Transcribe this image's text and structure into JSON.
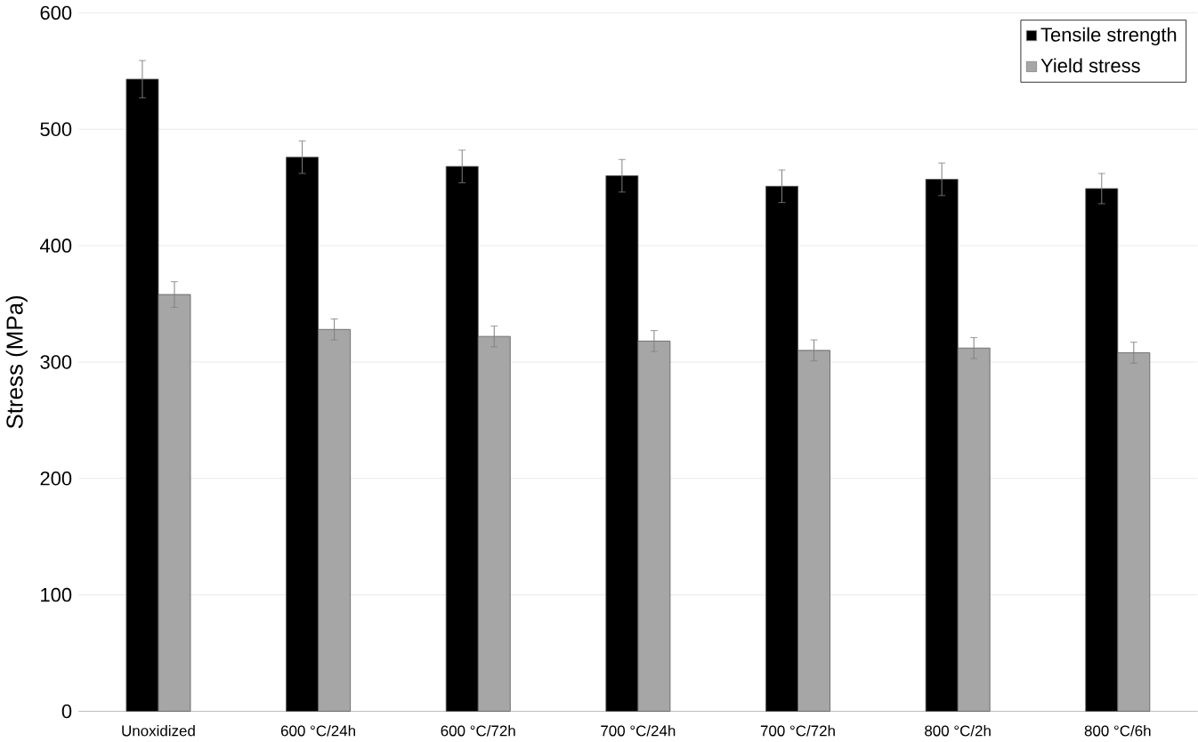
{
  "chart_data": {
    "type": "bar",
    "ylabel": "Stress (MPa)",
    "categories": [
      "Unoxidized",
      "600 °C/24h",
      "600 °C/72h",
      "700 °C/24h",
      "700 °C/72h",
      "800 °C/2h",
      "800 °C/6h"
    ],
    "series": [
      {
        "name": "Tensile strength",
        "color": "#000000",
        "values": [
          543,
          476,
          468,
          460,
          451,
          457,
          449
        ],
        "errors": [
          16,
          14,
          14,
          14,
          14,
          14,
          13
        ]
      },
      {
        "name": "Yield stress",
        "color": "#a6a6a6",
        "values": [
          358,
          328,
          322,
          318,
          310,
          312,
          308
        ],
        "errors": [
          11,
          9,
          9,
          9,
          9,
          9,
          9
        ]
      }
    ],
    "ylim": [
      0,
      600
    ],
    "yticks": [
      0,
      100,
      200,
      300,
      400,
      500,
      600
    ],
    "grid": "y",
    "legend": "top right"
  }
}
